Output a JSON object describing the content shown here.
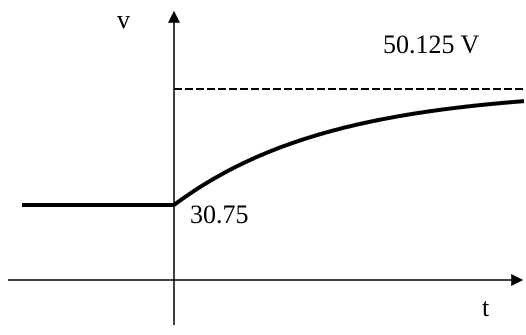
{
  "diagram": {
    "axes": {
      "vertical_label": "v",
      "horizontal_label": "t"
    },
    "annotations": {
      "final_value": "50.125 V",
      "initial_value": "30.75"
    },
    "curve": {
      "initial_level": 30.75,
      "final_level": 50.125,
      "asymptote_style": "dashed"
    },
    "colors": {
      "ink": "#000000",
      "background": "#ffffff"
    }
  }
}
